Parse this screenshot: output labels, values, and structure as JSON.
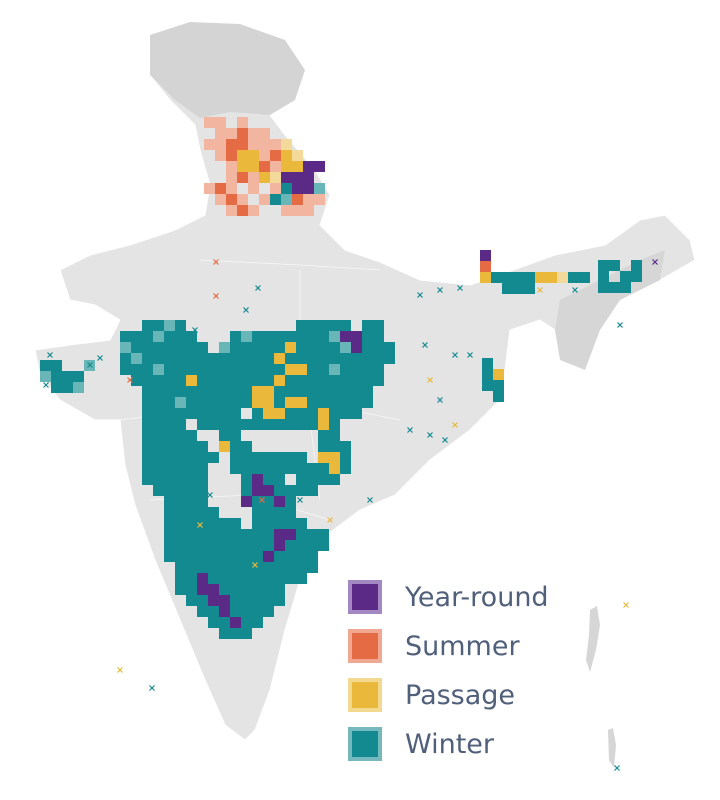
{
  "legend": {
    "items": [
      {
        "key": "year_round",
        "label": "Year-round",
        "color": "#5b2a86",
        "border": "#a488c4"
      },
      {
        "key": "summer",
        "label": "Summer",
        "color": "#e56b45",
        "border": "#f0a892"
      },
      {
        "key": "passage",
        "label": "Passage",
        "color": "#eab93c",
        "border": "#f3d88f"
      },
      {
        "key": "winter",
        "label": "Winter",
        "color": "#138a8f",
        "border": "#76b9bc"
      }
    ]
  },
  "colors": {
    "land": "#e4e4e4",
    "land_shade": "#d2d2d2",
    "border_lines": "#ffffff",
    "year_round": "#5b2a86",
    "summer": "#e56b45",
    "passage": "#eab93c",
    "winter": "#138a8f",
    "winter_light": "#69b6b8",
    "summer_light": "#f2b5a0",
    "passage_light": "#f3d99a",
    "year_round_light": "#a68bc4"
  },
  "map_layers": [
    "land-outline",
    "range-grid-cells",
    "occurrence-markers",
    "legend"
  ]
}
